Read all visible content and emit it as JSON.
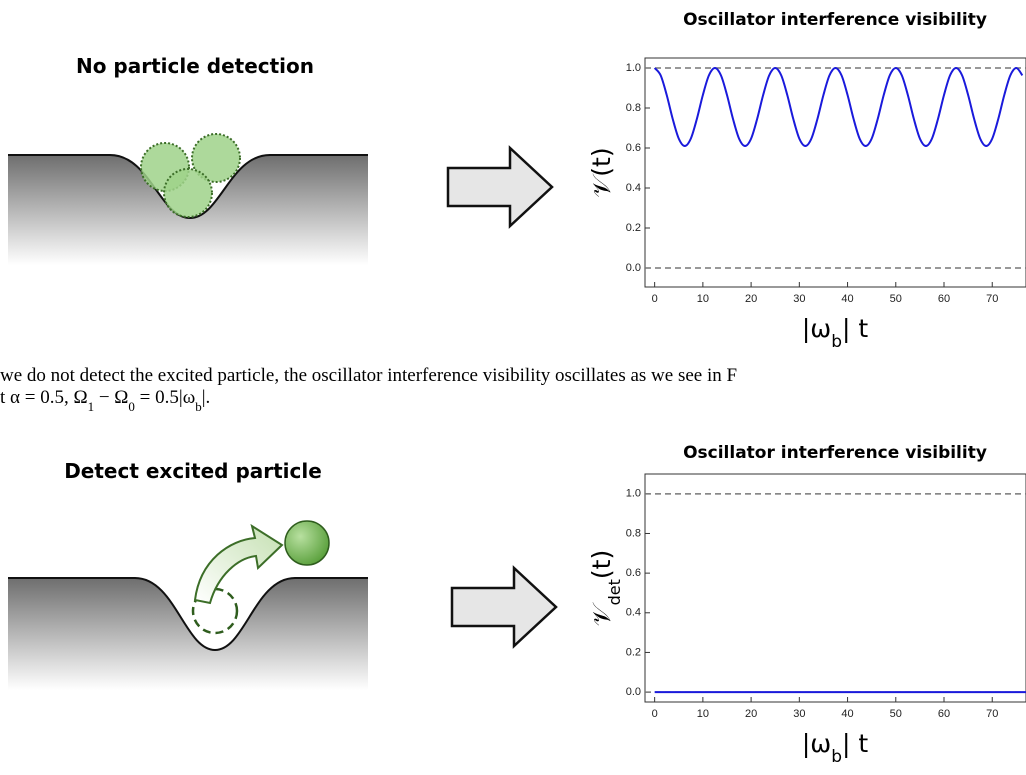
{
  "panels": [
    {
      "title": "No particle detection"
    },
    {
      "title": "Detect excited particle"
    }
  ],
  "caption_lines": [
    [
      "we do not detect the excited particle, the oscillator interference visibility oscillates as we see in F"
    ],
    [
      "t α = 0.5,  Ω",
      "1",
      " − Ω",
      "0",
      " = 0.5|ω",
      "b",
      "|."
    ]
  ],
  "chart_data": [
    {
      "type": "line",
      "title": "Oscillator interference visibility",
      "y_label": [
        "𝒱(t)"
      ],
      "x_label": [
        "|ω",
        "b",
        "| t"
      ],
      "xlim": [
        -2,
        77
      ],
      "ylim": [
        -0.095,
        1.05
      ],
      "xticks": [
        0,
        10,
        20,
        30,
        40,
        50,
        60,
        70
      ],
      "yticks": [
        {
          "value": 0,
          "label": "0.0"
        },
        0.2,
        0.4,
        0.6,
        0.8,
        {
          "value": 1,
          "label": "1.0"
        }
      ],
      "hlines": [
        0,
        1
      ],
      "series": [
        {
          "color": "#1a1adb",
          "x": [
            0,
            1.25,
            2.5,
            3.75,
            5,
            6.25,
            7.5,
            8.75,
            10,
            11.25,
            12.5,
            13.75,
            15,
            16.25,
            17.5,
            18.75,
            20,
            21.25,
            22.5,
            23.75,
            25,
            26.25,
            27.5,
            28.75,
            30,
            31.25,
            32.5,
            33.75,
            35,
            36.25,
            37.5,
            38.75,
            40,
            41.25,
            42.5,
            43.75,
            45,
            46.25,
            47.5,
            48.75,
            50,
            51.25,
            52.5,
            53.75,
            55,
            56.25,
            57.5,
            58.75,
            60,
            61.25,
            62.5,
            63.75,
            65,
            66.25,
            67.5,
            68.75,
            70,
            71.25,
            72.5,
            73.75,
            75,
            76.25
          ],
          "values": [
            1.0,
            0.963,
            0.865,
            0.745,
            0.647,
            0.61,
            0.647,
            0.745,
            0.865,
            0.963,
            1.0,
            0.963,
            0.865,
            0.745,
            0.647,
            0.61,
            0.647,
            0.745,
            0.865,
            0.963,
            1.0,
            0.963,
            0.865,
            0.745,
            0.647,
            0.61,
            0.647,
            0.745,
            0.865,
            0.963,
            1.0,
            0.963,
            0.865,
            0.745,
            0.647,
            0.61,
            0.647,
            0.745,
            0.865,
            0.963,
            1.0,
            0.963,
            0.865,
            0.745,
            0.647,
            0.61,
            0.647,
            0.745,
            0.865,
            0.963,
            1.0,
            0.963,
            0.865,
            0.745,
            0.647,
            0.61,
            0.647,
            0.745,
            0.865,
            0.963,
            1.0,
            0.963
          ]
        }
      ]
    },
    {
      "type": "line",
      "title": "Oscillator interference visibility",
      "y_label": [
        "𝒱",
        "det",
        "(t)"
      ],
      "x_label": [
        "|ω",
        "b",
        "| t"
      ],
      "xlim": [
        -2,
        77
      ],
      "ylim": [
        -0.05,
        1.1
      ],
      "xticks": [
        0,
        10,
        20,
        30,
        40,
        50,
        60,
        70
      ],
      "yticks": [
        {
          "value": 0,
          "label": "0.0"
        },
        0.2,
        0.4,
        0.6,
        0.8,
        {
          "value": 1,
          "label": "1.0"
        }
      ],
      "hlines": [
        0,
        1
      ],
      "series": [
        {
          "color": "#1a1adb",
          "x": [
            0,
            77
          ],
          "values": [
            0,
            0
          ]
        }
      ]
    }
  ]
}
